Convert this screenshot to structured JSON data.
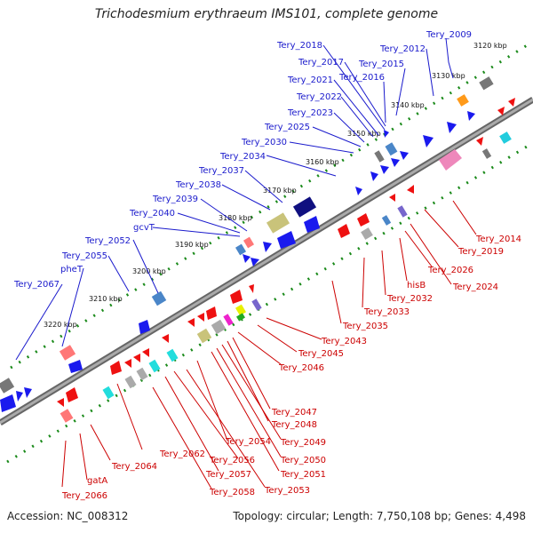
{
  "title": "Trichodesmium erythraeum IMS101, complete genome",
  "accession": "Accession: NC_008312",
  "summary": "Topology: circular; Length: 7,750,108 bp; Genes: 4,498",
  "kbp_ticks": [
    "3120 kbp",
    "3130 kbp",
    "3140 kbp",
    "3150 kbp",
    "3160 kbp",
    "3170 kbp",
    "3180 kbp",
    "3190 kbp",
    "3200 kbp",
    "3210 kbp",
    "3220 kbp"
  ],
  "upper_labels": [
    "Tery_2009",
    "Tery_2012",
    "Tery_2015",
    "Tery_2016",
    "Tery_2017",
    "Tery_2018",
    "Tery_2021",
    "Tery_2022",
    "Tery_2023",
    "Tery_2025",
    "Tery_2030",
    "Tery_2034",
    "Tery_2037",
    "Tery_2038",
    "Tery_2039",
    "Tery_2040",
    "gcvT",
    "Tery_2052",
    "Tery_2055",
    "pheT",
    "Tery_2067"
  ],
  "lower_labels": [
    "Tery_2014",
    "Tery_2019",
    "Tery_2024",
    "Tery_2026",
    "hisB",
    "Tery_2032",
    "Tery_2033",
    "Tery_2035",
    "Tery_2043",
    "Tery_2045",
    "Tery_2046",
    "Tery_2047",
    "Tery_2048",
    "Tery_2049",
    "Tery_2050",
    "Tery_2051",
    "Tery_2053",
    "Tery_2054",
    "Tery_2056",
    "Tery_2057",
    "Tery_2058",
    "Tery_2062",
    "Tery_2064",
    "gatA",
    "Tery_2066"
  ],
  "colors": {
    "forward_label": "#1a1acc",
    "reverse_label": "#cc0000",
    "backbone": "#808080",
    "tick": "#1a8a1a"
  }
}
